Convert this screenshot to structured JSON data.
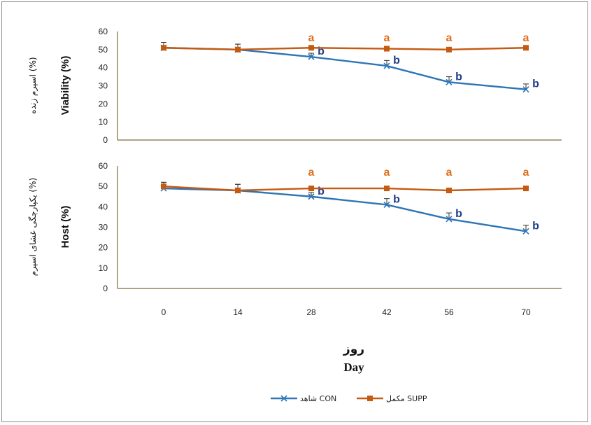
{
  "colors": {
    "con": "#2E75B6",
    "supp": "#C55A11",
    "axis": "#7F6A3E",
    "sig_a": "#E07020",
    "sig_b": "#1F3C88"
  },
  "chart_data": [
    {
      "type": "line",
      "ylabel_en": "Viability (%)",
      "ylabel_fa": "اسپرم زنده (%)",
      "x": [
        0,
        14,
        28,
        42,
        56,
        70
      ],
      "yticks": [
        "0",
        "10",
        "20",
        "30",
        "40",
        "50",
        "60"
      ],
      "ylim": [
        0,
        60
      ],
      "series": [
        {
          "key": "con",
          "values": [
            51,
            50,
            46,
            41,
            32,
            28
          ],
          "err": [
            3,
            3,
            2,
            3,
            3,
            3
          ],
          "markers": "x",
          "letters": [
            "",
            "",
            "b",
            "b",
            "b",
            "b"
          ]
        },
        {
          "key": "supp",
          "values": [
            51,
            50,
            51,
            50.5,
            50,
            51
          ],
          "err": [
            3,
            3,
            1,
            1,
            1,
            1
          ],
          "markers": "square",
          "letters": [
            "",
            "",
            "a",
            "a",
            "a",
            "a"
          ]
        }
      ]
    },
    {
      "type": "line",
      "ylabel_en": "Host (%)",
      "ylabel_fa": "یکپارچگی غشای اسپرم (%)",
      "x": [
        0,
        14,
        28,
        42,
        56,
        70
      ],
      "yticks": [
        "0",
        "10",
        "20",
        "30",
        "40",
        "50",
        "60"
      ],
      "ylim": [
        0,
        60
      ],
      "series": [
        {
          "key": "con",
          "values": [
            49,
            48,
            45,
            41,
            34,
            28
          ],
          "err": [
            3,
            3,
            2,
            3,
            3,
            3
          ],
          "markers": "x",
          "letters": [
            "",
            "",
            "b",
            "b",
            "b",
            "b"
          ]
        },
        {
          "key": "supp",
          "values": [
            50,
            48,
            49,
            49,
            48,
            49
          ],
          "err": [
            2,
            3,
            1,
            1,
            1,
            1
          ],
          "markers": "square",
          "letters": [
            "",
            "",
            "a",
            "a",
            "a",
            "a"
          ]
        }
      ]
    }
  ],
  "x_tick_labels": [
    "0",
    "14",
    "28",
    "42",
    "56",
    "70"
  ],
  "xlabel_fa": "روز",
  "xlabel_en": "Day",
  "legend": [
    {
      "key": "con",
      "label": "شاهد CON"
    },
    {
      "key": "supp",
      "label": "مکمل SUPP"
    }
  ]
}
